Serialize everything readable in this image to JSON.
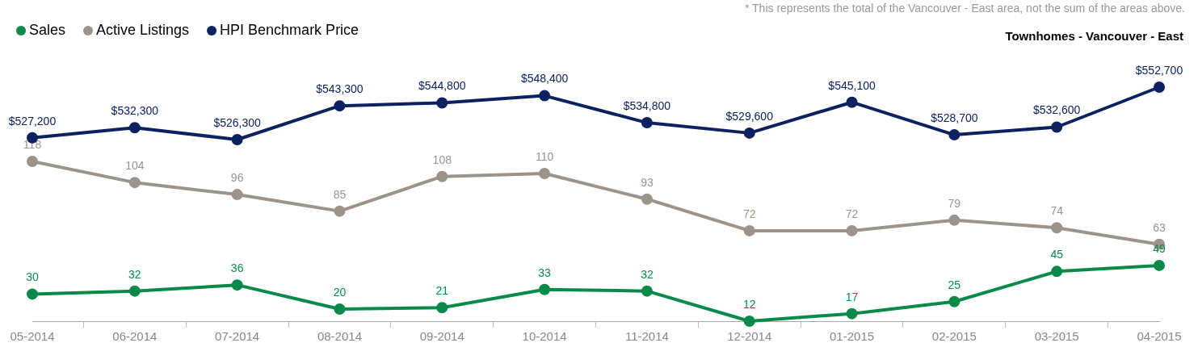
{
  "chart_data": [
    {
      "type": "line",
      "title": "Townhomes - Vancouver - East",
      "annotations": [
        "* This represents the total of the Vancouver - East area, not the sum of the areas above."
      ],
      "categories": [
        null,
        null,
        null,
        null,
        null,
        null,
        null,
        null,
        null,
        null,
        null,
        null
      ],
      "series": [
        {
          "name": "HPI Benchmark Price",
          "color": "#0c2160",
          "values": [
            527200,
            532300,
            526300,
            543300,
            544800,
            548400,
            534800,
            529600,
            545100,
            528700,
            532600,
            552700
          ],
          "value_labels": [
            "$527,200",
            "$532,300",
            "$526,300",
            "$543,300",
            "$544,800",
            "$548,400",
            "$534,800",
            "$529,600",
            "$545,100",
            "$528,700",
            "$532,600",
            "$552,700"
          ]
        }
      ],
      "tick_labels": false,
      "legend": "top left",
      "grid": false,
      "marker": "circle",
      "line_style": "solid"
    },
    {
      "type": "line",
      "categories": [
        "05-2014",
        "06-2014",
        "07-2014",
        "08-2014",
        "09-2014",
        "10-2014",
        "11-2014",
        "12-2014",
        "01-2015",
        "02-2015",
        "03-2015",
        "04-2015"
      ],
      "series": [
        {
          "name": "Sales",
          "color": "#0a8a4a",
          "values": [
            30,
            32,
            36,
            20,
            21,
            33,
            32,
            12,
            17,
            25,
            45,
            49
          ]
        },
        {
          "name": "Active Listings",
          "color": "#9c948a",
          "values": [
            118,
            104,
            96,
            85,
            108,
            110,
            93,
            72,
            72,
            79,
            74,
            63
          ]
        }
      ],
      "tick_labels": "x",
      "data_labels": true,
      "legend": "top left",
      "grid": false,
      "marker": "circle",
      "line_style": "solid"
    }
  ]
}
